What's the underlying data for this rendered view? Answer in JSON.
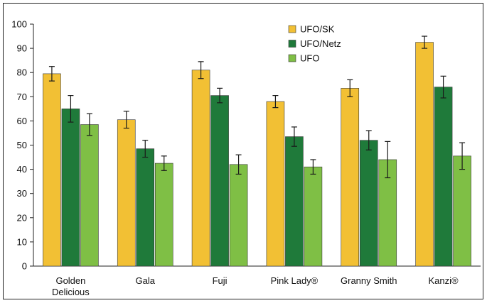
{
  "chart_data": {
    "type": "bar",
    "title": "",
    "xlabel": "",
    "ylabel": "",
    "ylim": [
      0,
      100
    ],
    "yticks": [
      0,
      10,
      20,
      30,
      40,
      50,
      60,
      70,
      80,
      90,
      100
    ],
    "grid": false,
    "legend_position": "top-center",
    "categories": [
      "Golden Delicious",
      "Gala",
      "Fuji",
      "Pink Lady®",
      "Granny Smith",
      "Kanzi®"
    ],
    "series": [
      {
        "name": "UFO/SK",
        "color": "#f2c034",
        "values": [
          79.5,
          60.5,
          81,
          68,
          73.5,
          92.5
        ],
        "errors": [
          3,
          3.5,
          3.5,
          2.5,
          3.5,
          2.5
        ]
      },
      {
        "name": "UFO/Netz",
        "color": "#1f7a3a",
        "values": [
          65,
          48.5,
          70.5,
          53.5,
          52,
          74
        ],
        "errors": [
          5.5,
          3.5,
          3,
          4,
          4,
          4.5
        ]
      },
      {
        "name": "UFO",
        "color": "#7fbf45",
        "values": [
          58.5,
          42.5,
          42,
          41,
          44,
          45.5
        ],
        "errors": [
          4.5,
          3,
          4,
          3,
          7.5,
          5.5
        ]
      }
    ]
  }
}
